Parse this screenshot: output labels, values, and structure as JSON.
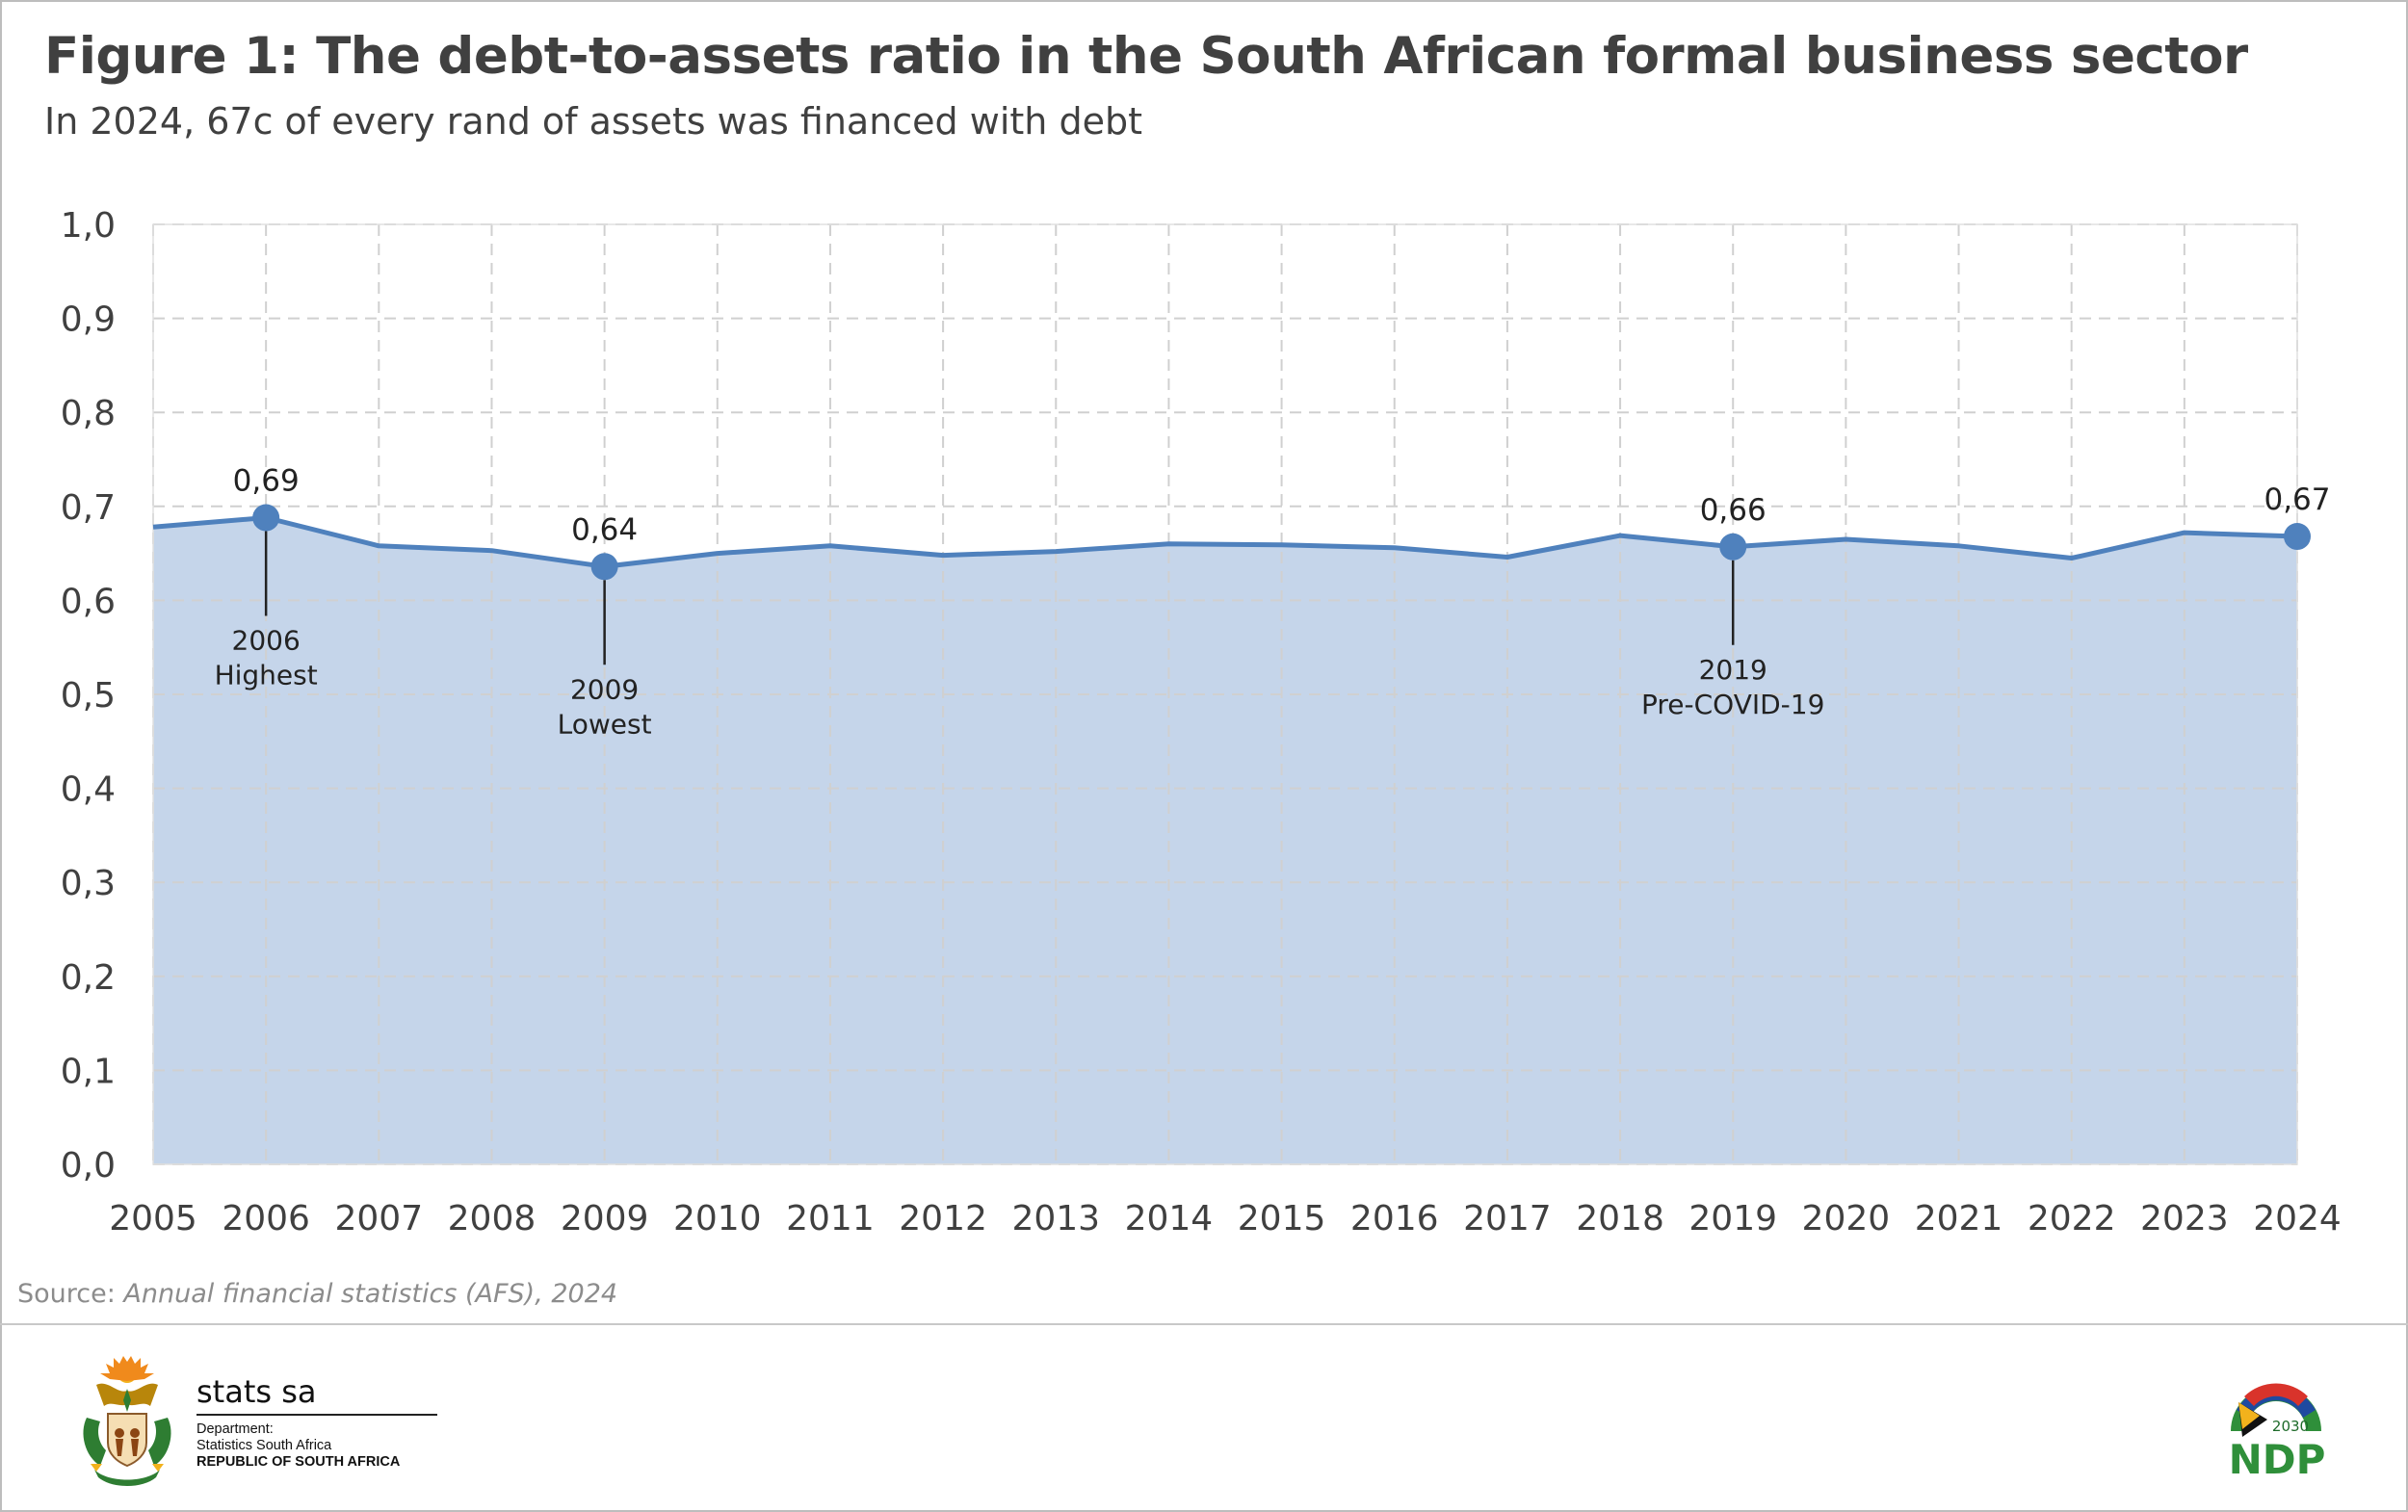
{
  "title": "Figure 1: The debt-to-assets ratio in the South African formal business sector",
  "subtitle": "In 2024, 67c of every rand of assets was financed with debt",
  "source": {
    "prefix": "Source: ",
    "publication": "Annual financial statistics (AFS), 2024"
  },
  "colors": {
    "line": "#4f81bd",
    "area": "#c5d5ea",
    "grid": "#d0d0d0",
    "axis_text": "#404040",
    "annotation": "#222222"
  },
  "chart_data": {
    "type": "area",
    "x": [
      "2005",
      "2006",
      "2007",
      "2008",
      "2009",
      "2010",
      "2011",
      "2012",
      "2013",
      "2014",
      "2015",
      "2016",
      "2017",
      "2018",
      "2019",
      "2020",
      "2021",
      "2022",
      "2023",
      "2024"
    ],
    "series": [
      {
        "values": [
          0.678,
          0.688,
          0.658,
          0.653,
          0.636,
          0.65,
          0.658,
          0.648,
          0.652,
          0.66,
          0.659,
          0.656,
          0.646,
          0.669,
          0.657,
          0.665,
          0.658,
          0.645,
          0.672,
          0.668
        ]
      }
    ],
    "ylim": [
      0,
      1
    ],
    "y_ticks": [
      "0,0",
      "0,1",
      "0,2",
      "0,3",
      "0,4",
      "0,5",
      "0,6",
      "0,7",
      "0,8",
      "0,9",
      "1,0"
    ],
    "xlabel": "",
    "ylabel": "",
    "grid": "dashed, horizontal and vertical",
    "legend": "none",
    "annotations": [
      {
        "x": "2006",
        "value_label": "0,69",
        "note": [
          "2006",
          "Highest"
        ],
        "leader": true
      },
      {
        "x": "2009",
        "value_label": "0,64",
        "note": [
          "2009",
          "Lowest"
        ],
        "leader": true
      },
      {
        "x": "2019",
        "value_label": "0,66",
        "note": [
          "2019",
          "Pre-COVID-19"
        ],
        "leader": true
      },
      {
        "x": "2024",
        "value_label": "0,67",
        "note": [],
        "leader": false
      }
    ]
  },
  "footer": {
    "statssa": {
      "name": "stats sa",
      "department": "Department:",
      "agency": "Statistics South Africa",
      "country": "REPUBLIC OF SOUTH AFRICA",
      "emblem": "coat-of-arms"
    },
    "ndp": {
      "year": "2030",
      "label": "NDP",
      "emblem": "ndp-flag-arc"
    }
  }
}
